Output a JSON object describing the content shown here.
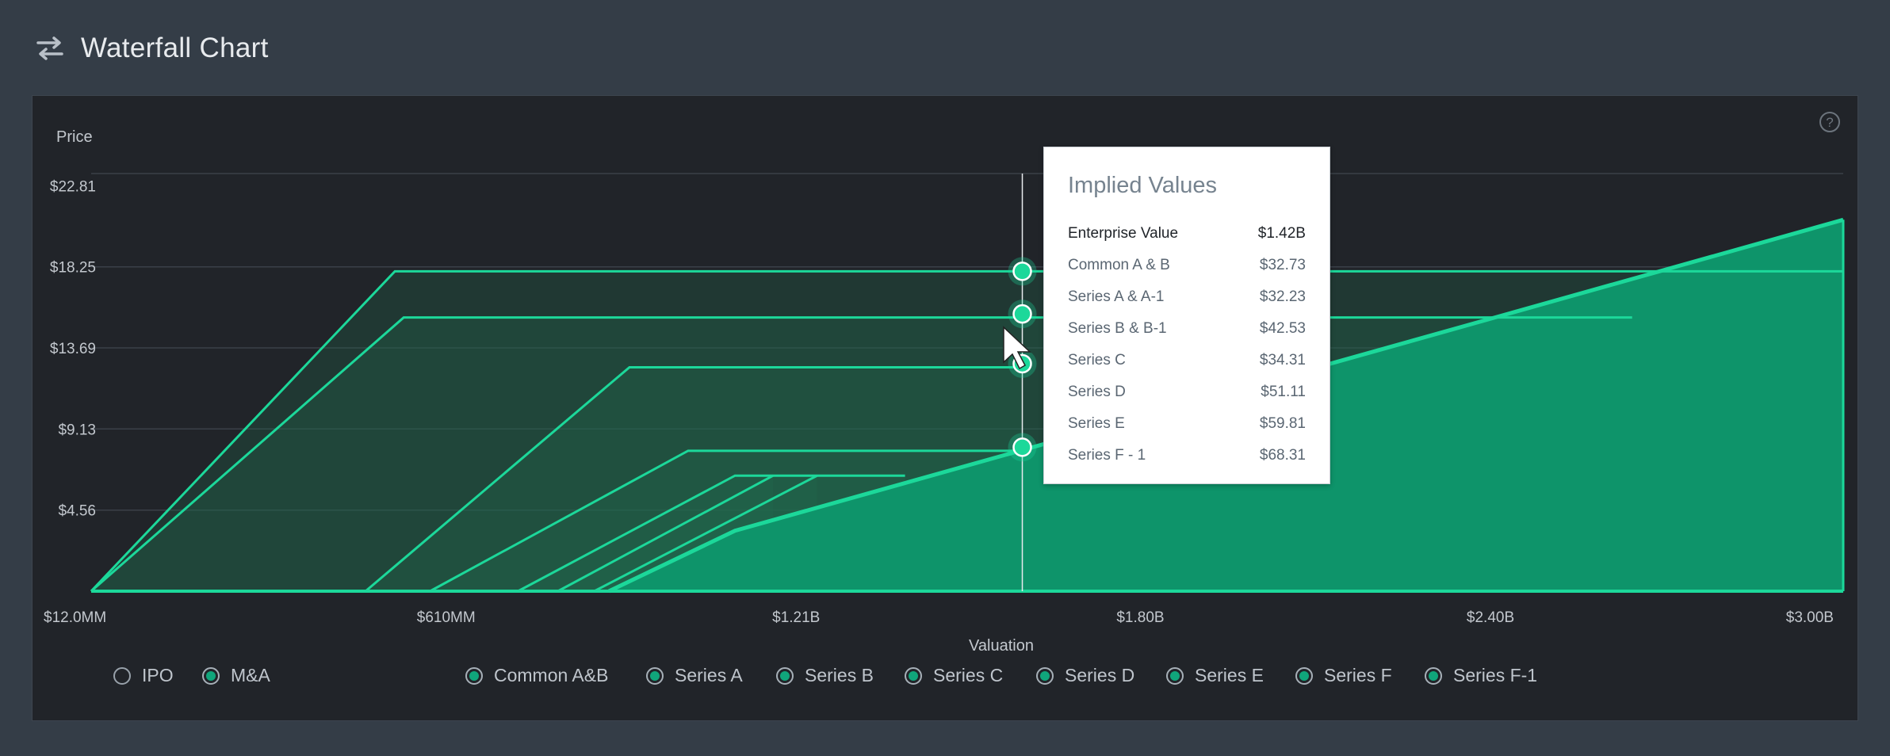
{
  "header": {
    "title": "Waterfall Chart",
    "icon": "swap-arrows-icon"
  },
  "help_icon": "help-circle-icon",
  "chart_data": {
    "type": "area",
    "ylabel": "Price",
    "xlabel": "Valuation",
    "x_ticks": [
      "$12.0MM",
      "$610MM",
      "$1.21B",
      "$1.80B",
      "$2.40B",
      "$3.00B"
    ],
    "y_ticks": [
      "$22.81",
      "$18.25",
      "$13.69",
      "$9.13",
      "$4.56"
    ],
    "ylim": [
      0,
      23.5
    ],
    "xlim": [
      12,
      3000
    ],
    "grid": true,
    "accent_color": "#1cd89a",
    "fill_color": "#0e946a",
    "hover_x": 1600,
    "series": [
      {
        "name": "Common A&B",
        "points": [
          [
            12,
            0
          ],
          [
            530,
            18.0
          ],
          [
            3000,
            18.0
          ]
        ]
      },
      {
        "name": "Series A",
        "points": [
          [
            12,
            0
          ],
          [
            545,
            15.4
          ],
          [
            2640,
            15.4
          ]
        ]
      },
      {
        "name": "Series B",
        "points": [
          [
            480,
            0
          ],
          [
            930,
            12.6
          ],
          [
            1600,
            12.6
          ]
        ]
      },
      {
        "name": "Series C",
        "points": [
          [
            590,
            0
          ],
          [
            1030,
            7.9
          ],
          [
            1600,
            7.9
          ]
        ]
      },
      {
        "name": "Series D",
        "points": [
          [
            740,
            0
          ],
          [
            1110,
            6.5
          ],
          [
            1400,
            6.5
          ]
        ]
      },
      {
        "name": "Series E",
        "points": [
          [
            808,
            0
          ],
          [
            1175,
            6.5
          ]
        ]
      },
      {
        "name": "Series F",
        "points": [
          [
            870,
            0
          ],
          [
            1250,
            6.5
          ]
        ]
      },
      {
        "name": "Series F-1",
        "points": [
          [
            895,
            0
          ],
          [
            1110,
            3.4
          ],
          [
            3000,
            20.9
          ],
          [
            3000,
            0
          ]
        ],
        "filled": true
      }
    ],
    "markers": [
      18.0,
      15.6,
      12.8,
      8.1
    ]
  },
  "tooltip": {
    "title": "Implied Values",
    "rows": [
      {
        "label": "Enterprise Value",
        "value": "$1.42B"
      },
      {
        "label": "Common A & B",
        "value": "$32.73"
      },
      {
        "label": "Series A & A-1",
        "value": "$32.23"
      },
      {
        "label": "Series B & B-1",
        "value": "$42.53"
      },
      {
        "label": "Series C",
        "value": "$34.31"
      },
      {
        "label": "Series D",
        "value": "$51.11"
      },
      {
        "label": "Series E",
        "value": "$59.81"
      },
      {
        "label": "Series F - 1",
        "value": "$68.31"
      }
    ]
  },
  "legend": {
    "scenarios": [
      {
        "label": "IPO",
        "selected": false
      },
      {
        "label": "M&A",
        "selected": true
      }
    ],
    "classes": [
      {
        "label": "Common A&B",
        "selected": true
      },
      {
        "label": "Series A",
        "selected": true
      },
      {
        "label": "Series B",
        "selected": true
      },
      {
        "label": "Series C",
        "selected": true
      },
      {
        "label": "Series D",
        "selected": true
      },
      {
        "label": "Series E",
        "selected": true
      },
      {
        "label": "Series F",
        "selected": true
      },
      {
        "label": "Series F-1",
        "selected": true
      }
    ]
  }
}
